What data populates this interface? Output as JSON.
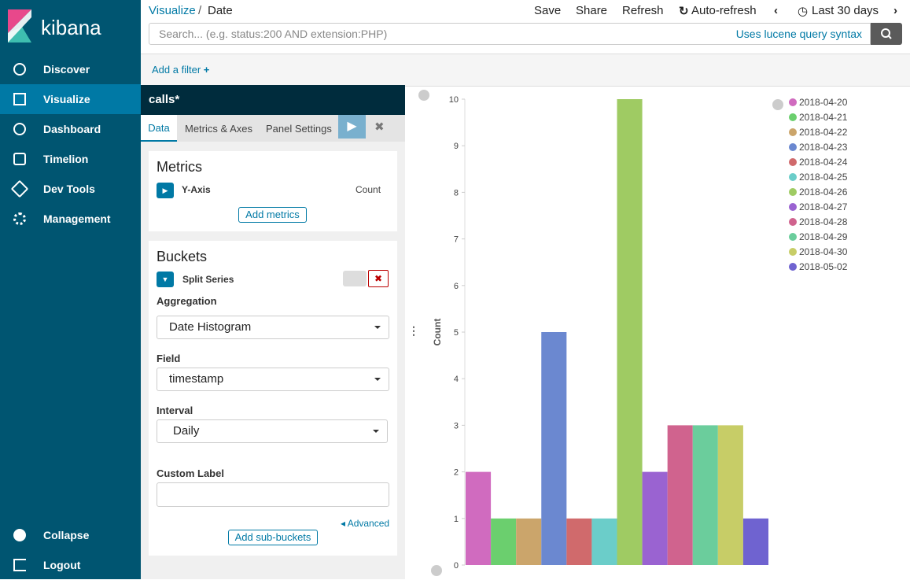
{
  "sidebar": {
    "brand": "kibana",
    "nav": [
      "Discover",
      "Visualize",
      "Dashboard",
      "Timelion",
      "Dev Tools",
      "Management"
    ],
    "footer": [
      "Collapse",
      "Logout"
    ]
  },
  "topbar": {
    "breadcrumb": [
      "Visualize",
      "Date"
    ],
    "actions": [
      "Save",
      "Share",
      "Refresh",
      "Auto-refresh",
      "Last 30 days"
    ],
    "search_placeholder": "Search... (e.g. status:200 AND extension:PHP)",
    "lucene": "Uses lucene query syntax",
    "add_filter": "Add a filter"
  },
  "editor": {
    "index": "calls*",
    "tabs": [
      "Data",
      "Metrics & Axes",
      "Panel Settings"
    ],
    "metrics": {
      "title": "Metrics",
      "y_axis": "Y-Axis",
      "aggregation": "Count",
      "add": "Add metrics"
    },
    "buckets": {
      "title": "Buckets",
      "split": "Split Series",
      "aggregation_label": "Aggregation",
      "aggregation": "Date Histogram",
      "field_label": "Field",
      "field": "timestamp",
      "interval_label": "Interval",
      "interval": "Daily",
      "custom_label": "Custom Label",
      "advanced": "Advanced",
      "add": "Add sub-buckets"
    }
  },
  "chart_data": {
    "type": "bar",
    "y_label": "Count",
    "categories": [
      "2018-04-20",
      "2018-04-21",
      "2018-04-22",
      "2018-04-23",
      "2018-04-24",
      "2018-04-25",
      "2018-04-26",
      "2018-04-27",
      "2018-04-28",
      "2018-04-29",
      "2018-04-30",
      "2018-05-02"
    ],
    "values": [
      2,
      1,
      1,
      5,
      1,
      1,
      10,
      2,
      3,
      3,
      3,
      1
    ],
    "colors": [
      "#d06bbf",
      "#6bcf6e",
      "#cba56b",
      "#6b88d0",
      "#d06a6c",
      "#6bcdc9",
      "#9fcb63",
      "#9a63d1",
      "#d0638e",
      "#6bcd9c",
      "#c7cd67",
      "#6f63d0"
    ],
    "ylim": [
      0,
      10
    ],
    "yticks": [
      0,
      1,
      2,
      3,
      4,
      5,
      6,
      7,
      8,
      9,
      10
    ],
    "legend": "top-right"
  }
}
